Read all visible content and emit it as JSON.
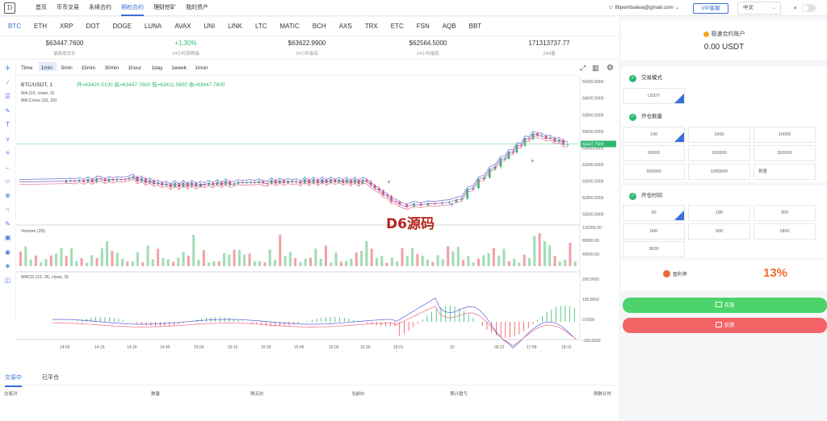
{
  "nav": {
    "items": [
      "首页",
      "币币交易",
      "永续合约",
      "期权合约",
      "理财挖矿",
      "我的资产"
    ],
    "active_index": 3
  },
  "user": {
    "email": "filipembaleia@gmail.com",
    "vip": "VIP客服",
    "lang": "中文"
  },
  "symbols": [
    "BTC",
    "ETH",
    "XRP",
    "DOT",
    "DOGE",
    "LUNA",
    "AVAX",
    "UNI",
    "LINK",
    "LTC",
    "MATIC",
    "BCH",
    "AXS",
    "TRX",
    "ETC",
    "FSN",
    "AQB",
    "BBT"
  ],
  "stats": [
    {
      "v": "$63447.7600",
      "l": "最新成交价"
    },
    {
      "v": "+1.30%",
      "l": "24小时涨跌幅"
    },
    {
      "v": "$63622.9900",
      "l": "24小时最高"
    },
    {
      "v": "$62564.5000",
      "l": "24小时最低"
    },
    {
      "v": "171313737.77",
      "l": "24H量"
    }
  ],
  "chart": {
    "intervals": [
      "Time",
      "1min",
      "5min",
      "15min",
      "30min",
      "1hour",
      "1day",
      "1week",
      "1mon"
    ],
    "active_interval": "1min",
    "symbol": "BTC/USDT, 1",
    "ohlc": "开=63420.5100  高=63447.7600  低=63411.5800  收=63447.7600",
    "ma": "MA (15, close, 0)",
    "macross": "MA Cross (10, 20)",
    "volume": "Volume (20)",
    "macd": "MACD (12, 26, close, 9)",
    "price_label": "63447.7600",
    "watermark": "D6源码",
    "price_ticks": [
      "64200.0000",
      "64000.0000",
      "63800.0000",
      "63600.0000",
      "63400.0000",
      "63200.0000",
      "63000.0000",
      "62800.0000",
      "62600.0000"
    ],
    "vol_ticks": [
      "120000.00",
      "80000.00",
      "40000.00"
    ],
    "macd_ticks": [
      "200.0000",
      "100.0000",
      "0.0000",
      "-100.0000"
    ],
    "time_ticks": [
      "14:00",
      "14:15",
      "14:30",
      "14:45",
      "15:00",
      "15:15",
      "15:30",
      "15:45",
      "16:00",
      "16:30",
      "18:01",
      "20",
      "06:22",
      "17:58",
      "18:15"
    ]
  },
  "chart_data": {
    "type": "line",
    "title": "BTC/USDT, 1",
    "x": [
      "14:00",
      "14:15",
      "14:30",
      "14:45",
      "15:00",
      "15:15",
      "15:30",
      "15:45",
      "16:00",
      "16:30",
      "18:01",
      "20",
      "06:22",
      "17:58",
      "18:15"
    ],
    "series": [
      {
        "values": [
          63000,
          63010,
          63030,
          62950,
          62960,
          62980,
          62990,
          62995,
          63000,
          62990,
          62700,
          62750,
          63250,
          63570,
          63447.76
        ]
      }
    ],
    "ylim": [
      62500,
      64250
    ]
  },
  "orders": {
    "tabs": [
      "交易中",
      "已平仓"
    ],
    "headers": [
      "交易对",
      "数量",
      "购买价",
      "当前价",
      "预计盈亏",
      "倒数计时"
    ]
  },
  "account": {
    "title": "极速合约账户",
    "balance": "0.00 USDT"
  },
  "mode": {
    "label": "交易模式",
    "value": "USDT"
  },
  "qty": {
    "label": "开仓数量",
    "options": [
      "100",
      "1000",
      "10000",
      "50000",
      "100000",
      "300000",
      "500000",
      "1000000",
      "数量"
    ]
  },
  "time": {
    "label": "开仓时间",
    "options": [
      "60",
      "180",
      "300",
      "600",
      "900",
      "1800",
      "3600"
    ]
  },
  "profit": {
    "label": "盈利率",
    "value": "13%"
  },
  "actions": {
    "buy": "买涨",
    "sell": "买跌"
  }
}
